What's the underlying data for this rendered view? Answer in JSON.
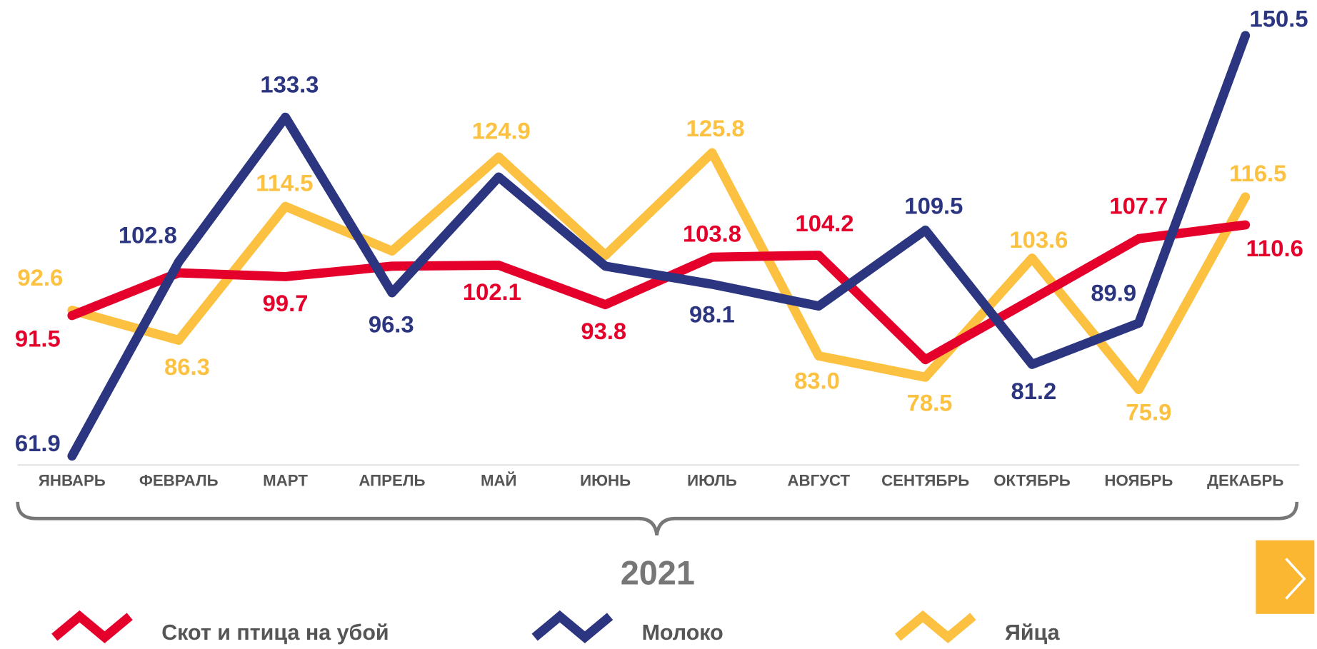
{
  "chart_data": {
    "type": "line",
    "xlabel": "2021",
    "categories": [
      "ЯНВАРЬ",
      "ФЕВРАЛЬ",
      "МАРТ",
      "АПРЕЛЬ",
      "МАЙ",
      "ИЮНЬ",
      "ИЮЛЬ",
      "АВГУСТ",
      "СЕНТЯБРЬ",
      "ОКТЯБРЬ",
      "НОЯБРЬ",
      "ДЕКАБРЬ"
    ],
    "ylim": [
      60,
      158
    ],
    "series": [
      {
        "name": "Скот и птица на убой",
        "color": "#e4002b",
        "values": [
          91.5,
          100.5,
          99.7,
          101.9,
          102.1,
          93.8,
          103.8,
          104.2,
          82.2,
          94.9,
          107.7,
          110.6
        ],
        "value_labels": [
          "91.5",
          null,
          "99.7",
          null,
          "102.1",
          "93.8",
          "103.8",
          "104.2",
          null,
          null,
          "107.7",
          "110.6"
        ]
      },
      {
        "name": "Молоко",
        "color": "#2b3580",
        "values": [
          61.9,
          102.8,
          133.3,
          96.3,
          120.7,
          101.9,
          98.1,
          93.5,
          109.5,
          81.2,
          89.9,
          150.5
        ],
        "value_labels": [
          "61.9",
          "102.8",
          "133.3",
          "96.3",
          null,
          null,
          "98.1",
          null,
          "109.5",
          "81.2",
          "89.9",
          "150.5"
        ]
      },
      {
        "name": "Яйца",
        "color": "#fcc141",
        "values": [
          92.6,
          86.3,
          114.5,
          105.1,
          124.9,
          104.2,
          125.8,
          83.0,
          78.5,
          103.6,
          75.9,
          116.5
        ],
        "value_labels": [
          "92.6",
          "86.3",
          "114.5",
          null,
          "124.9",
          null,
          "125.8",
          "83.0",
          "78.5",
          "103.6",
          "75.9",
          "116.5"
        ]
      }
    ]
  }
}
